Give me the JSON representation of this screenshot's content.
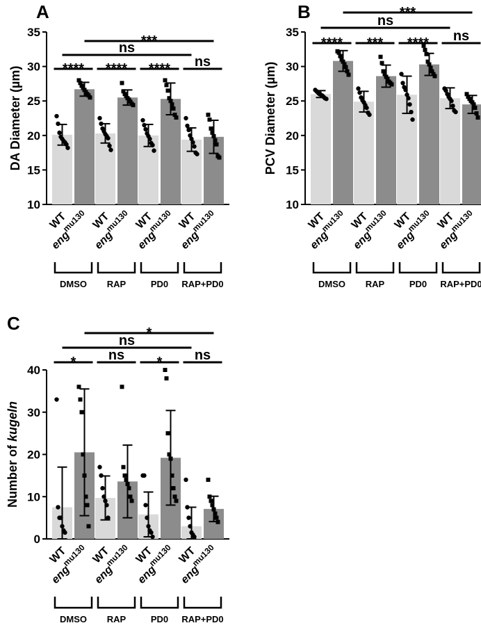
{
  "chart_data": [
    {
      "panel": "A",
      "type": "bar",
      "ylabel": "DA Diameter (µm)",
      "ylim": [
        10,
        35
      ],
      "yticks": [
        10,
        15,
        20,
        25,
        30,
        35
      ],
      "categories": [
        "WT",
        "engmu130",
        "WT",
        "engmu130",
        "WT",
        "engmu130",
        "WT",
        "engmu130"
      ],
      "category_labels": [
        {
          "main": "WT",
          "sup": ""
        },
        {
          "main": "eng",
          "sup": "mu130"
        },
        {
          "main": "WT",
          "sup": ""
        },
        {
          "main": "eng",
          "sup": "mu130"
        },
        {
          "main": "WT",
          "sup": ""
        },
        {
          "main": "eng",
          "sup": "mu130"
        },
        {
          "main": "WT",
          "sup": ""
        },
        {
          "main": "eng",
          "sup": "mu130"
        }
      ],
      "groups": [
        "DMSO",
        "RAP",
        "PD0",
        "RAP+PD0"
      ],
      "values": [
        20.1,
        26.7,
        20.3,
        25.5,
        20.0,
        25.3,
        19.4,
        19.8
      ],
      "errors": [
        1.5,
        1.0,
        1.4,
        1.1,
        1.6,
        2.3,
        1.7,
        2.4
      ],
      "points": [
        [
          22.8,
          21.7,
          20.4,
          19.8,
          19.5,
          19.2,
          19.0,
          18.7,
          18.2
        ],
        [
          28.0,
          27.6,
          27.2,
          26.9,
          26.6,
          26.3,
          26.0,
          25.8,
          25.5
        ],
        [
          22.5,
          21.7,
          21.0,
          20.6,
          20.2,
          19.9,
          19.6,
          18.5,
          17.9
        ],
        [
          27.6,
          26.4,
          26.0,
          25.7,
          25.4,
          25.2,
          24.9,
          24.6,
          24.4
        ],
        [
          22.2,
          21.5,
          20.9,
          20.3,
          19.9,
          19.5,
          18.9,
          18.6,
          17.8
        ],
        [
          28.0,
          27.3,
          26.5,
          25.4,
          25.0,
          24.5,
          23.9,
          23.0,
          22.6
        ],
        [
          22.5,
          21.4,
          20.8,
          20.0,
          19.5,
          19.0,
          18.4,
          17.5,
          17.3
        ],
        [
          23.0,
          22.3,
          21.0,
          20.4,
          19.9,
          19.3,
          18.7,
          17.0,
          16.8
        ]
      ],
      "series": [
        {
          "name": "WT",
          "color": "#d9d9d9"
        },
        {
          "name": "engmu130",
          "color": "#8c8c8c"
        }
      ],
      "significance": [
        {
          "label": "****",
          "from": 0,
          "to": 1
        },
        {
          "label": "****",
          "from": 2,
          "to": 3
        },
        {
          "label": "****",
          "from": 4,
          "to": 5
        },
        {
          "label": "ns",
          "from": 6,
          "to": 7
        },
        {
          "label": "ns",
          "from": 0,
          "to": 6
        },
        {
          "label": "***",
          "from": 1,
          "to": 7
        }
      ]
    },
    {
      "panel": "B",
      "type": "bar",
      "ylabel": "PCV Diameter (µm)",
      "ylim": [
        10,
        35
      ],
      "yticks": [
        10,
        15,
        20,
        25,
        30,
        35
      ],
      "categories": [
        "WT",
        "engmu130",
        "WT",
        "engmu130",
        "WT",
        "engmu130",
        "WT",
        "engmu130"
      ],
      "category_labels": [
        {
          "main": "WT",
          "sup": ""
        },
        {
          "main": "eng",
          "sup": "mu130"
        },
        {
          "main": "WT",
          "sup": ""
        },
        {
          "main": "eng",
          "sup": "mu130"
        },
        {
          "main": "WT",
          "sup": ""
        },
        {
          "main": "eng",
          "sup": "mu130"
        },
        {
          "main": "WT",
          "sup": ""
        },
        {
          "main": "eng",
          "sup": "mu130"
        }
      ],
      "groups": [
        "DMSO",
        "RAP",
        "PD0",
        "RAP+PD0"
      ],
      "values": [
        26.0,
        30.8,
        24.9,
        28.6,
        25.9,
        30.3,
        25.4,
        24.5
      ],
      "errors": [
        0.5,
        1.5,
        1.5,
        1.6,
        2.7,
        1.6,
        1.5,
        1.3
      ],
      "points": [
        [
          26.6,
          26.4,
          26.2,
          26.0,
          25.9,
          25.8,
          25.6,
          25.4,
          25.3
        ],
        [
          32.2,
          32.0,
          31.5,
          31.0,
          30.7,
          30.3,
          29.9,
          29.3,
          28.8
        ],
        [
          26.8,
          26.2,
          25.5,
          25.1,
          24.8,
          24.4,
          24.0,
          23.3,
          23.0
        ],
        [
          31.4,
          30.5,
          29.3,
          28.9,
          28.5,
          28.2,
          27.8,
          27.6,
          27.4
        ],
        [
          28.9,
          27.6,
          27.0,
          26.6,
          25.9,
          25.4,
          24.5,
          23.4,
          22.3
        ],
        [
          33.0,
          32.4,
          31.8,
          30.7,
          30.3,
          29.8,
          29.3,
          28.9,
          28.6
        ],
        [
          26.8,
          26.5,
          26.0,
          25.6,
          25.3,
          25.0,
          24.3,
          23.6,
          23.4
        ],
        [
          26.0,
          25.6,
          25.3,
          25.0,
          24.8,
          24.5,
          24.0,
          23.2,
          22.6
        ]
      ],
      "series": [
        {
          "name": "WT",
          "color": "#d9d9d9"
        },
        {
          "name": "engmu130",
          "color": "#8c8c8c"
        }
      ],
      "significance": [
        {
          "label": "****",
          "from": 0,
          "to": 1
        },
        {
          "label": "***",
          "from": 2,
          "to": 3
        },
        {
          "label": "****",
          "from": 4,
          "to": 5
        },
        {
          "label": "ns",
          "from": 6,
          "to": 7
        },
        {
          "label": "ns",
          "from": 0,
          "to": 6
        },
        {
          "label": "***",
          "from": 1,
          "to": 7
        }
      ]
    },
    {
      "panel": "C",
      "type": "bar",
      "ylabel_main": "Number of ",
      "ylabel_italic": "kugeln",
      "ylim": [
        0,
        40
      ],
      "yticks": [
        0,
        10,
        20,
        30,
        40
      ],
      "categories": [
        "WT",
        "engmu130",
        "WT",
        "engmu130",
        "WT",
        "engmu130",
        "WT",
        "engmu130"
      ],
      "category_labels": [
        {
          "main": "WT",
          "sup": ""
        },
        {
          "main": "eng",
          "sup": "mu130"
        },
        {
          "main": "WT",
          "sup": ""
        },
        {
          "main": "eng",
          "sup": "mu130"
        },
        {
          "main": "WT",
          "sup": ""
        },
        {
          "main": "eng",
          "sup": "mu130"
        },
        {
          "main": "WT",
          "sup": ""
        },
        {
          "main": "eng",
          "sup": "mu130"
        }
      ],
      "groups": [
        "DMSO",
        "RAP",
        "PD0",
        "RAP+PD0"
      ],
      "values": [
        7.5,
        20.5,
        9.7,
        13.6,
        5.8,
        19.2,
        3.0,
        7.1
      ],
      "errors": [
        9.5,
        15.0,
        5.2,
        8.6,
        5.3,
        11.2,
        4.5,
        3.0
      ],
      "points": [
        [
          33.0,
          7.5,
          5.0,
          5.0,
          3.0,
          2.0,
          1.5
        ],
        [
          36.0,
          33.0,
          30.0,
          20.0,
          15.0,
          10.0,
          8.0,
          3.0
        ],
        [
          17.0,
          15.0,
          12.0,
          10.0,
          9.0,
          8.0,
          5.0
        ],
        [
          36.0,
          17.0,
          15.0,
          14.0,
          13.0,
          12.0,
          10.0,
          9.0
        ],
        [
          15.0,
          15.0,
          8.0,
          5.0,
          3.0,
          2.0,
          1.5,
          0.5
        ],
        [
          40.0,
          38.0,
          25.0,
          20.0,
          19.0,
          15.0,
          12.0,
          10.0,
          9.0
        ],
        [
          14.0,
          7.5,
          5.0,
          3.0,
          1.5,
          1.0,
          0.5
        ],
        [
          14.0,
          10.0,
          9.0,
          8.0,
          7.0,
          6.0,
          5.0,
          4.0
        ]
      ],
      "series": [
        {
          "name": "WT",
          "color": "#d9d9d9"
        },
        {
          "name": "engmu130",
          "color": "#8c8c8c"
        }
      ],
      "significance": [
        {
          "label": "*",
          "from": 0,
          "to": 1
        },
        {
          "label": "ns",
          "from": 2,
          "to": 3
        },
        {
          "label": "*",
          "from": 4,
          "to": 5
        },
        {
          "label": "ns",
          "from": 6,
          "to": 7
        },
        {
          "label": "ns",
          "from": 0,
          "to": 6
        },
        {
          "label": "*",
          "from": 1,
          "to": 7
        }
      ]
    }
  ]
}
